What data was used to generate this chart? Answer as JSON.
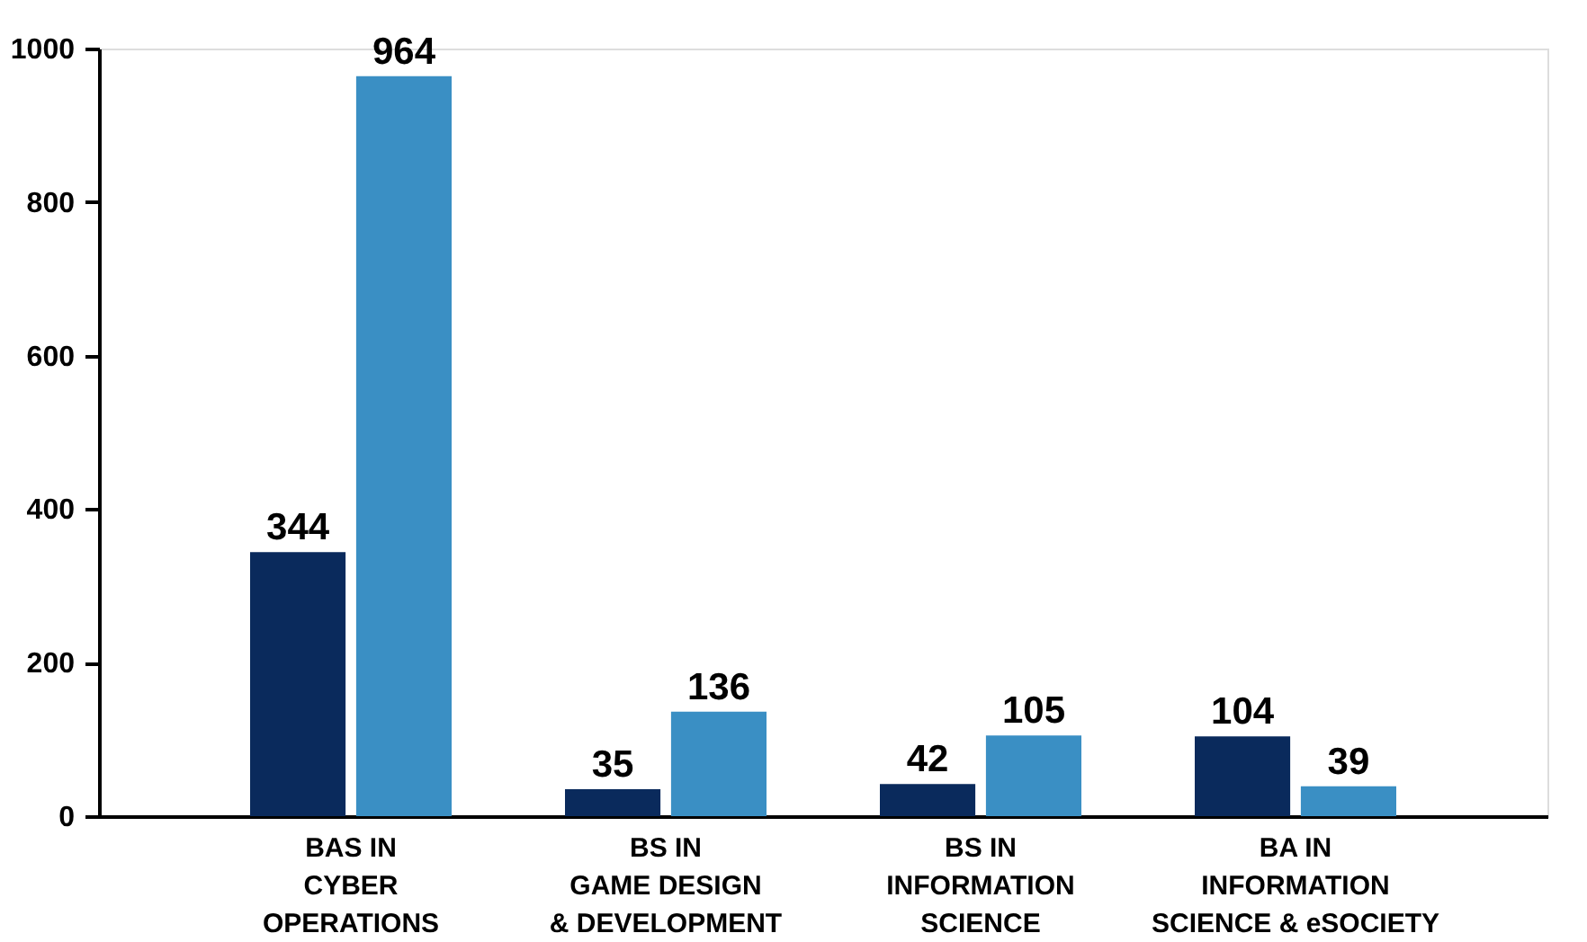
{
  "chart_data": {
    "type": "bar",
    "categories": [
      "BAS IN\nCYBER\nOPERATIONS",
      "BS IN\nGAME DESIGN\n& DEVELOPMENT",
      "BS IN\nINFORMATION\nSCIENCE",
      "BA IN\nINFORMATION\nSCIENCE & eSOCIETY"
    ],
    "series": [
      {
        "color": "#0a2a5c",
        "values": [
          344,
          35,
          42,
          104
        ]
      },
      {
        "color": "#3a8fc4",
        "values": [
          964,
          136,
          105,
          39
        ]
      }
    ],
    "ylim": [
      0,
      1000
    ],
    "yticks": [
      0,
      200,
      400,
      600,
      800,
      1000
    ],
    "data_labels": true,
    "grid": false,
    "legend": false
  }
}
